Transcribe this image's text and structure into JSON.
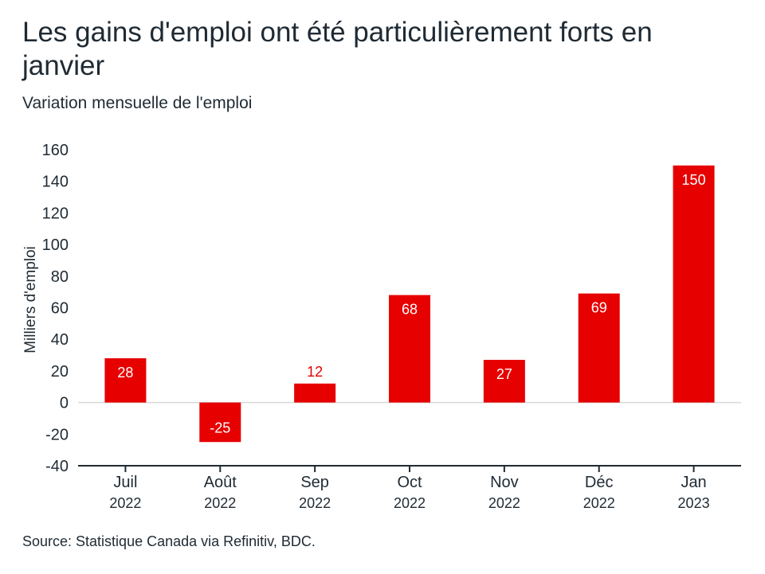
{
  "title": "Les gains d'emploi ont été particulièrement forts en janvier",
  "subtitle": "Variation mensuelle de l'emploi",
  "source": "Source: Statistique Canada via Refinitiv, BDC.",
  "colors": {
    "bar": "#e60000",
    "axis": "#1f2a33",
    "grid": "#d9d9d9",
    "label_on_bar": "#ffffff",
    "label_outside": "#e60000"
  },
  "chart_data": {
    "type": "bar",
    "categories": [
      [
        "Juil",
        "2022"
      ],
      [
        "Août",
        "2022"
      ],
      [
        "Sep",
        "2022"
      ],
      [
        "Oct",
        "2022"
      ],
      [
        "Nov",
        "2022"
      ],
      [
        "Déc",
        "2022"
      ],
      [
        "Jan",
        "2023"
      ]
    ],
    "values": [
      28,
      -25,
      12,
      68,
      27,
      69,
      150
    ],
    "data_labels": [
      "28",
      "-25",
      "12",
      "68",
      "27",
      "69",
      "150"
    ],
    "ylabel": "Milliers d'emploi",
    "ylim": [
      -40,
      160
    ],
    "yticks": [
      -40,
      -20,
      0,
      20,
      40,
      60,
      80,
      100,
      120,
      140,
      160
    ],
    "grid": false,
    "zero_line": true
  }
}
